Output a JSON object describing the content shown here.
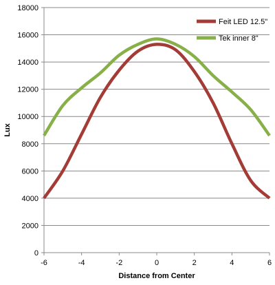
{
  "chart_data": {
    "type": "line",
    "title": "",
    "xlabel": "Distance from Center",
    "ylabel": "Lux",
    "xlim": [
      -6,
      6
    ],
    "ylim": [
      0,
      18000
    ],
    "x_ticks": [
      -6,
      -4,
      -2,
      0,
      2,
      4,
      6
    ],
    "y_ticks": [
      0,
      2000,
      4000,
      6000,
      8000,
      10000,
      12000,
      14000,
      16000,
      18000
    ],
    "grid": "horizontal",
    "legend_position": "top-right",
    "smooth": true,
    "series": [
      {
        "name": "Feit LED 12.5\"",
        "color": "#a33b36",
        "x": [
          -6,
          -5,
          -4,
          -3,
          -2,
          -1,
          0,
          1,
          2,
          3,
          4,
          5,
          6
        ],
        "y": [
          4000,
          6000,
          8700,
          11400,
          13400,
          14800,
          15300,
          14900,
          13300,
          11000,
          8000,
          5300,
          4000
        ]
      },
      {
        "name": "Tek inner 8\"",
        "color": "#88b048",
        "x": [
          -6,
          -5,
          -4,
          -3,
          -2,
          -1,
          0,
          1,
          2,
          3,
          4,
          5,
          6
        ],
        "y": [
          8600,
          10800,
          12100,
          13200,
          14500,
          15300,
          15700,
          15300,
          14400,
          13000,
          11800,
          10500,
          8600
        ]
      }
    ]
  }
}
